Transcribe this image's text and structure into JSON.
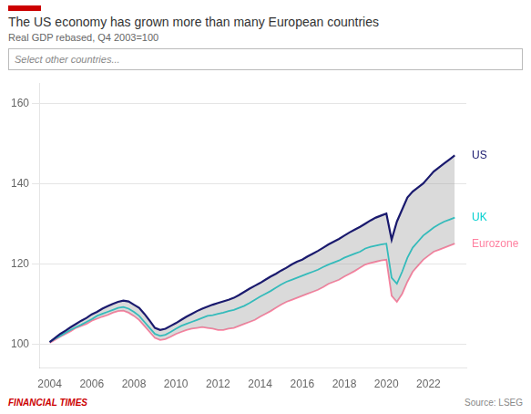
{
  "chart_data": {
    "type": "line",
    "title": "The US economy has grown more than many European countries",
    "subtitle": "Real GDP rebased, Q4 2003=100",
    "annotations": [
      "Select other countries...",
      "FINANCIAL TIMES",
      "Source: LSEG"
    ],
    "x": [
      2004.0,
      2004.25,
      2004.5,
      2004.75,
      2005.0,
      2005.25,
      2005.5,
      2005.75,
      2006.0,
      2006.25,
      2006.5,
      2006.75,
      2007.0,
      2007.25,
      2007.5,
      2007.75,
      2008.0,
      2008.25,
      2008.5,
      2008.75,
      2009.0,
      2009.25,
      2009.5,
      2009.75,
      2010.0,
      2010.25,
      2010.5,
      2010.75,
      2011.0,
      2011.25,
      2011.5,
      2011.75,
      2012.0,
      2012.25,
      2012.5,
      2012.75,
      2013.0,
      2013.25,
      2013.5,
      2013.75,
      2014.0,
      2014.25,
      2014.5,
      2014.75,
      2015.0,
      2015.25,
      2015.5,
      2015.75,
      2016.0,
      2016.25,
      2016.5,
      2016.75,
      2017.0,
      2017.25,
      2017.5,
      2017.75,
      2018.0,
      2018.25,
      2018.5,
      2018.75,
      2019.0,
      2019.25,
      2019.5,
      2019.75,
      2020.0,
      2020.25,
      2020.5,
      2020.75,
      2021.0,
      2021.25,
      2021.5,
      2021.75,
      2022.0,
      2022.25,
      2022.5,
      2022.75,
      2023.0,
      2023.25
    ],
    "series": [
      {
        "name": "Eurozone",
        "color": "#ff80a0",
        "values": [
          100.3,
          101.0,
          101.8,
          102.5,
          103.2,
          104.0,
          104.5,
          105.0,
          105.8,
          106.3,
          106.8,
          107.2,
          107.8,
          108.2,
          108.3,
          107.8,
          107.0,
          106.0,
          104.5,
          103.0,
          101.5,
          101.0,
          101.2,
          101.8,
          102.5,
          103.0,
          103.5,
          103.8,
          104.0,
          104.2,
          104.0,
          103.8,
          103.5,
          103.5,
          103.8,
          104.0,
          104.5,
          105.0,
          105.5,
          106.0,
          106.8,
          107.5,
          108.2,
          109.0,
          109.8,
          110.5,
          111.0,
          111.5,
          112.0,
          112.5,
          113.0,
          113.5,
          114.2,
          115.0,
          115.5,
          116.0,
          116.8,
          117.5,
          118.2,
          119.0,
          119.8,
          120.2,
          120.5,
          120.8,
          121.0,
          112.0,
          110.5,
          112.5,
          115.5,
          118.0,
          119.5,
          121.0,
          122.0,
          123.0,
          123.5,
          124.0,
          124.5,
          125.0
        ]
      },
      {
        "name": "UK",
        "color": "#00cfcf",
        "values": [
          100.5,
          101.3,
          102.0,
          102.8,
          103.5,
          104.2,
          104.8,
          105.5,
          106.2,
          107.0,
          107.5,
          108.0,
          108.5,
          109.0,
          109.2,
          108.8,
          108.0,
          107.0,
          105.5,
          104.0,
          102.5,
          102.0,
          102.3,
          103.0,
          103.8,
          104.5,
          105.0,
          105.5,
          106.0,
          106.5,
          107.0,
          107.2,
          107.5,
          107.8,
          108.2,
          108.5,
          109.0,
          109.5,
          110.2,
          111.0,
          111.8,
          112.5,
          113.2,
          114.0,
          114.8,
          115.5,
          116.0,
          116.5,
          117.0,
          117.5,
          118.0,
          118.5,
          119.2,
          119.8,
          120.3,
          120.8,
          121.5,
          122.0,
          122.5,
          123.0,
          123.8,
          124.2,
          124.5,
          124.8,
          125.0,
          116.5,
          115.0,
          118.0,
          121.5,
          124.0,
          125.5,
          127.0,
          128.0,
          129.0,
          129.8,
          130.5,
          131.0,
          131.5
        ]
      },
      {
        "name": "US",
        "color": "#1a1a6e",
        "values": [
          100.5,
          101.5,
          102.5,
          103.3,
          104.2,
          105.0,
          105.8,
          106.5,
          107.4,
          108.0,
          108.8,
          109.4,
          110.0,
          110.5,
          110.8,
          110.6,
          109.8,
          109.0,
          107.5,
          105.8,
          104.0,
          103.5,
          103.8,
          104.5,
          105.2,
          106.0,
          106.8,
          107.5,
          108.2,
          108.8,
          109.3,
          109.8,
          110.2,
          110.6,
          111.0,
          111.5,
          112.2,
          113.0,
          113.8,
          114.5,
          115.2,
          116.0,
          116.8,
          117.5,
          118.3,
          119.0,
          119.8,
          120.5,
          121.0,
          121.8,
          122.5,
          123.2,
          124.0,
          124.8,
          125.5,
          126.2,
          127.0,
          127.8,
          128.5,
          129.2,
          130.0,
          130.8,
          131.5,
          132.0,
          132.5,
          126.0,
          130.5,
          133.5,
          136.5,
          138.0,
          139.0,
          140.0,
          141.5,
          143.0,
          144.0,
          145.0,
          146.0,
          147.0
        ]
      }
    ],
    "xlim": [
      2003.5,
      2023.8
    ],
    "xticks": [
      2004,
      2006,
      2008,
      2010,
      2012,
      2014,
      2016,
      2018,
      2020,
      2022
    ],
    "ylim": [
      94,
      165
    ],
    "yticks": [
      100,
      120,
      140,
      160
    ],
    "grid": "y"
  }
}
